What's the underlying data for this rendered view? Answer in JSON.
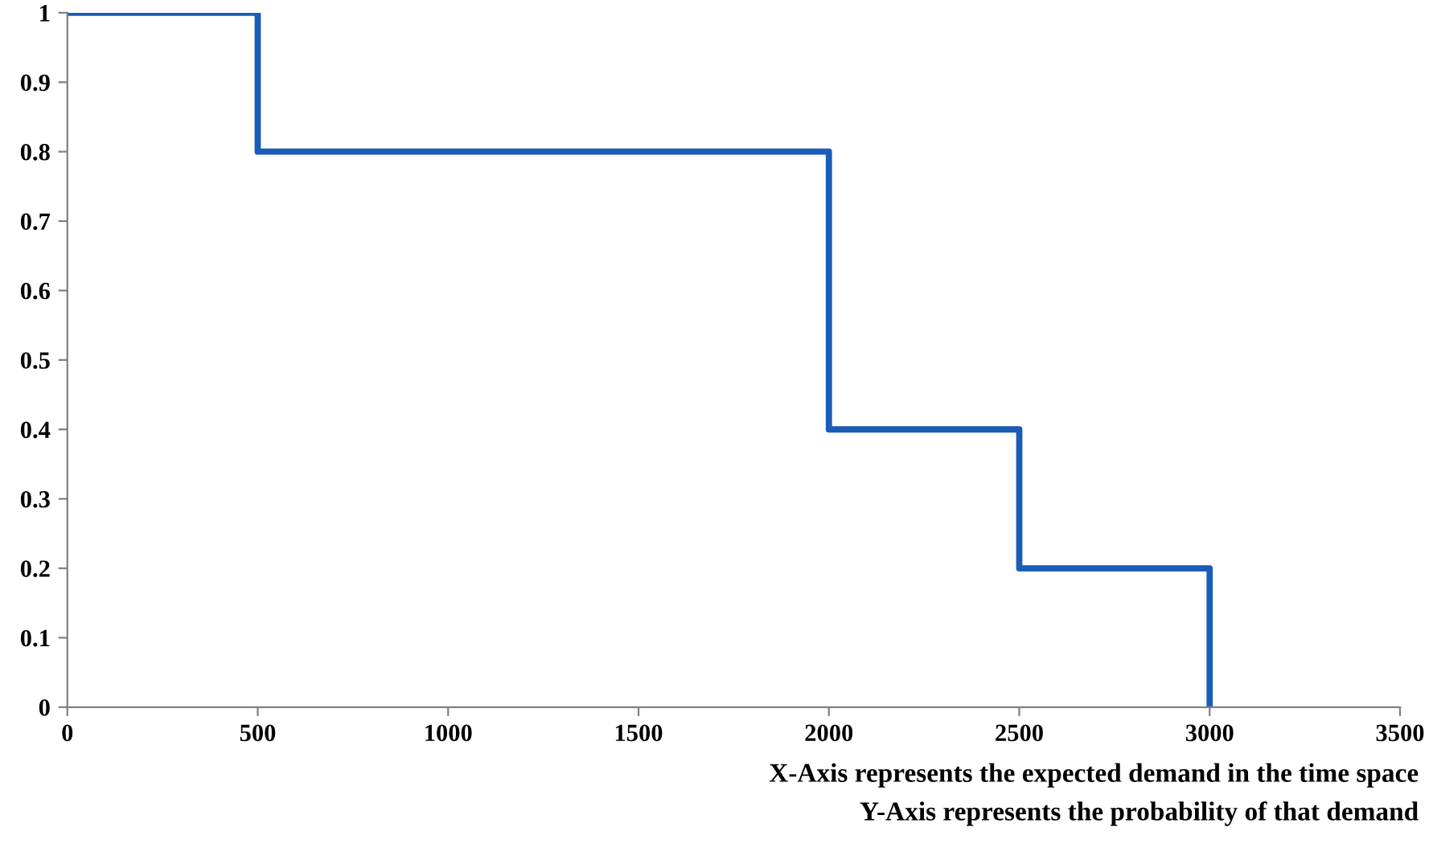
{
  "chart_data": {
    "type": "step",
    "x": [
      0,
      500,
      2000,
      2500,
      3000
    ],
    "series": [
      {
        "color": "#1a5cb8",
        "values": [
          1,
          0.8,
          0.4,
          0.2,
          0
        ]
      }
    ],
    "xlim": [
      0,
      3500
    ],
    "ylim": [
      0,
      1
    ],
    "xticks": [
      0,
      500,
      1000,
      1500,
      2000,
      2500,
      3000,
      3500
    ],
    "yticks": [
      0,
      0.1,
      0.2,
      0.3,
      0.4,
      0.5,
      0.6,
      0.7,
      0.8,
      0.9,
      1
    ],
    "annotations": [
      "X-Axis represents the expected demand in the time space",
      "Y-Axis represents the probability of that demand"
    ]
  }
}
